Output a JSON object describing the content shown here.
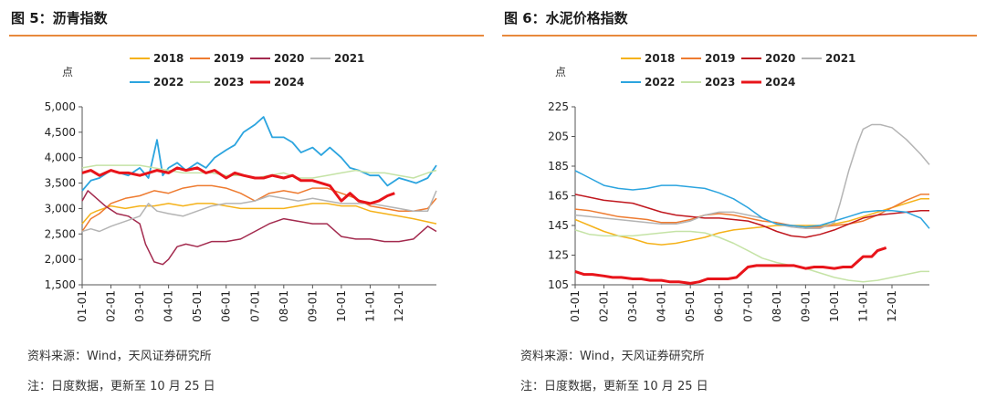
{
  "panels": [
    {
      "title": "图 5：沥青指数",
      "source": "资料来源：Wind，天风证券研究所",
      "note": "注：日度数据，更新至 10 月 25 日"
    },
    {
      "title": "图 6：水泥价格指数",
      "source": "资料来源：Wind，天风证券研究所",
      "note": "注：日度数据，更新至 10 月 25 日"
    }
  ],
  "chart_data": [
    {
      "type": "line",
      "title": "沥青指数",
      "ylabel": "点",
      "ylim": [
        1500,
        5000
      ],
      "yticks": [
        "1,500",
        "2,000",
        "2,500",
        "3,000",
        "3,500",
        "4,000",
        "4,500",
        "5,000"
      ],
      "categories": [
        "01-01",
        "02-01",
        "03-01",
        "04-01",
        "05-01",
        "06-01",
        "07-01",
        "08-01",
        "09-01",
        "10-01",
        "11-01",
        "12-01"
      ],
      "grid": false,
      "legend": "top",
      "series": [
        {
          "name": "2018",
          "color": "#F5B21A",
          "width": 1.5,
          "x": [
            0,
            0.3,
            0.5,
            1,
            1.5,
            2,
            2.5,
            3,
            3.5,
            4,
            4.5,
            5,
            5.5,
            6,
            6.5,
            7,
            7.5,
            8,
            8.5,
            9,
            9.5,
            10,
            10.5,
            11,
            11.5,
            12.3
          ],
          "values": [
            2700,
            2900,
            2950,
            3050,
            3000,
            3050,
            3050,
            3100,
            3050,
            3100,
            3100,
            3050,
            3000,
            3000,
            3000,
            3000,
            3050,
            3100,
            3100,
            3050,
            3050,
            2950,
            2900,
            2850,
            2800,
            2700
          ]
        },
        {
          "name": "2019",
          "color": "#EE7B30",
          "width": 1.5,
          "x": [
            0,
            0.3,
            0.6,
            1,
            1.5,
            2,
            2.5,
            3,
            3.5,
            4,
            4.5,
            5,
            5.5,
            6,
            6.5,
            7,
            7.5,
            8,
            8.5,
            9,
            9.5,
            10,
            10.5,
            11,
            11.5,
            12,
            12.3
          ],
          "values": [
            2550,
            2800,
            2900,
            3100,
            3200,
            3250,
            3350,
            3300,
            3400,
            3450,
            3450,
            3400,
            3300,
            3150,
            3300,
            3350,
            3300,
            3400,
            3400,
            3300,
            3200,
            3050,
            3000,
            2950,
            2950,
            3000,
            3200
          ]
        },
        {
          "name": "2020",
          "color": "#A32A4E",
          "width": 1.5,
          "x": [
            0,
            0.2,
            0.5,
            0.8,
            1.2,
            1.6,
            2,
            2.2,
            2.5,
            2.8,
            3,
            3.3,
            3.6,
            4,
            4.5,
            5,
            5.5,
            6,
            6.5,
            7,
            7.5,
            8,
            8.5,
            9,
            9.5,
            10,
            10.5,
            11,
            11.5,
            12,
            12.3
          ],
          "values": [
            3150,
            3350,
            3200,
            3050,
            2900,
            2850,
            2700,
            2300,
            1950,
            1900,
            2000,
            2250,
            2300,
            2250,
            2350,
            2350,
            2400,
            2550,
            2700,
            2800,
            2750,
            2700,
            2700,
            2450,
            2400,
            2400,
            2350,
            2350,
            2400,
            2650,
            2550
          ]
        },
        {
          "name": "2021",
          "color": "#B4B4B4",
          "width": 1.5,
          "x": [
            0,
            0.3,
            0.6,
            1,
            1.5,
            2,
            2.3,
            2.6,
            3,
            3.5,
            4,
            4.5,
            5,
            5.5,
            6,
            6.5,
            7,
            7.5,
            8,
            8.5,
            9,
            9.5,
            10,
            10.5,
            11,
            11.5,
            12,
            12.3
          ],
          "values": [
            2550,
            2600,
            2550,
            2650,
            2750,
            2850,
            3100,
            2950,
            2900,
            2850,
            2950,
            3050,
            3100,
            3100,
            3150,
            3250,
            3200,
            3150,
            3200,
            3150,
            3100,
            3100,
            3100,
            3050,
            3000,
            2950,
            2950,
            3350
          ]
        },
        {
          "name": "2022",
          "color": "#2BA4DF",
          "width": 1.8,
          "x": [
            0,
            0.3,
            0.6,
            1,
            1.3,
            1.6,
            2,
            2.3,
            2.6,
            2.8,
            3,
            3.3,
            3.6,
            4,
            4.3,
            4.6,
            5,
            5.3,
            5.6,
            6,
            6.3,
            6.6,
            7,
            7.3,
            7.6,
            8,
            8.3,
            8.6,
            9,
            9.3,
            9.6,
            10,
            10.3,
            10.6,
            11,
            11.3,
            11.6,
            12,
            12.3
          ],
          "values": [
            3350,
            3550,
            3600,
            3750,
            3700,
            3650,
            3800,
            3600,
            4350,
            3650,
            3800,
            3900,
            3750,
            3900,
            3800,
            4000,
            4150,
            4250,
            4500,
            4650,
            4800,
            4400,
            4400,
            4300,
            4100,
            4200,
            4050,
            4200,
            4000,
            3800,
            3750,
            3650,
            3650,
            3450,
            3600,
            3550,
            3500,
            3600,
            3850
          ]
        },
        {
          "name": "2023",
          "color": "#C5E3A6",
          "width": 1.5,
          "x": [
            0,
            0.5,
            1,
            1.5,
            2,
            2.5,
            3,
            3.5,
            4,
            4.5,
            5,
            5.5,
            6,
            6.5,
            7,
            7.5,
            8,
            8.5,
            9,
            9.5,
            10,
            10.5,
            11,
            11.5,
            12,
            12.3
          ],
          "values": [
            3800,
            3850,
            3850,
            3850,
            3850,
            3800,
            3750,
            3700,
            3700,
            3700,
            3650,
            3650,
            3600,
            3650,
            3700,
            3600,
            3600,
            3650,
            3700,
            3750,
            3700,
            3700,
            3650,
            3600,
            3700,
            3750
          ]
        },
        {
          "name": "2024",
          "color": "#E8141A",
          "width": 3,
          "x": [
            0,
            0.3,
            0.6,
            1,
            1.3,
            1.6,
            2,
            2.3,
            2.6,
            3,
            3.3,
            3.6,
            4,
            4.3,
            4.6,
            5,
            5.3,
            5.6,
            6,
            6.3,
            6.6,
            7,
            7.3,
            7.6,
            8,
            8.3,
            8.6,
            9,
            9.3,
            9.6,
            10,
            10.3,
            10.6,
            10.85
          ],
          "values": [
            3700,
            3750,
            3650,
            3750,
            3700,
            3700,
            3650,
            3700,
            3750,
            3700,
            3800,
            3750,
            3800,
            3700,
            3750,
            3600,
            3700,
            3650,
            3600,
            3600,
            3650,
            3600,
            3650,
            3550,
            3550,
            3500,
            3450,
            3150,
            3300,
            3150,
            3100,
            3150,
            3250,
            3300
          ]
        }
      ]
    },
    {
      "type": "line",
      "title": "水泥价格指数",
      "ylabel": "点",
      "ylim": [
        105,
        225
      ],
      "yticks": [
        "105",
        "125",
        "145",
        "165",
        "185",
        "205",
        "225"
      ],
      "categories": [
        "01-01",
        "02-01",
        "03-01",
        "04-01",
        "05-01",
        "06-01",
        "07-01",
        "08-01",
        "09-01",
        "10-01",
        "11-01",
        "12-01"
      ],
      "grid": false,
      "legend": "top",
      "series": [
        {
          "name": "2018",
          "color": "#F5B21A",
          "width": 1.5,
          "x": [
            0,
            0.5,
            1,
            1.5,
            2,
            2.5,
            3,
            3.5,
            4,
            4.5,
            5,
            5.5,
            6,
            6.5,
            7,
            7.5,
            8,
            8.5,
            9,
            9.5,
            10,
            10.5,
            11,
            11.5,
            12,
            12.3
          ],
          "values": [
            149,
            145,
            141,
            138,
            136,
            133,
            132,
            133,
            135,
            137,
            140,
            142,
            143,
            144,
            145,
            145,
            145,
            145,
            146,
            148,
            151,
            154,
            157,
            160,
            163,
            163
          ]
        },
        {
          "name": "2019",
          "color": "#EE7B30",
          "width": 1.5,
          "x": [
            0,
            0.5,
            1,
            1.5,
            2,
            2.5,
            3,
            3.5,
            4,
            4.5,
            5,
            5.5,
            6,
            6.5,
            7,
            7.5,
            8,
            8.5,
            9,
            9.5,
            10,
            10.5,
            11,
            11.5,
            12,
            12.3
          ],
          "values": [
            156,
            155,
            153,
            151,
            150,
            149,
            147,
            147,
            149,
            152,
            153,
            152,
            150,
            148,
            147,
            145,
            144,
            144,
            145,
            146,
            148,
            152,
            157,
            162,
            166,
            166
          ]
        },
        {
          "name": "2020",
          "color": "#C0181F",
          "width": 1.5,
          "x": [
            0,
            0.5,
            1,
            1.5,
            2,
            2.5,
            3,
            3.5,
            4,
            4.5,
            5,
            5.5,
            6,
            6.5,
            7,
            7.5,
            8,
            8.5,
            9,
            9.5,
            10,
            10.5,
            11,
            11.5,
            12,
            12.3
          ],
          "values": [
            166,
            164,
            162,
            161,
            160,
            157,
            154,
            152,
            151,
            150,
            150,
            149,
            148,
            145,
            141,
            138,
            137,
            139,
            142,
            146,
            150,
            152,
            153,
            154,
            155,
            155
          ]
        },
        {
          "name": "2021",
          "color": "#B4B4B4",
          "width": 1.5,
          "x": [
            0,
            0.5,
            1,
            1.5,
            2,
            2.5,
            3,
            3.5,
            4,
            4.5,
            5,
            5.5,
            6,
            6.5,
            7,
            7.5,
            8,
            8.5,
            9,
            9.2,
            9.5,
            9.8,
            10,
            10.3,
            10.6,
            11,
            11.5,
            12,
            12.3
          ],
          "values": [
            152,
            151,
            150,
            149,
            148,
            147,
            146,
            146,
            148,
            152,
            154,
            154,
            152,
            150,
            146,
            144,
            143,
            143,
            147,
            160,
            182,
            200,
            210,
            213,
            213,
            211,
            203,
            193,
            186
          ]
        },
        {
          "name": "2022",
          "color": "#2BA4DF",
          "width": 1.5,
          "x": [
            0,
            0.5,
            1,
            1.5,
            2,
            2.5,
            3,
            3.5,
            4,
            4.5,
            5,
            5.5,
            6,
            6.5,
            7,
            7.5,
            8,
            8.5,
            9,
            9.5,
            10,
            10.5,
            11,
            11.5,
            12,
            12.3
          ],
          "values": [
            182,
            177,
            172,
            170,
            169,
            170,
            172,
            172,
            171,
            170,
            167,
            163,
            157,
            150,
            146,
            145,
            144,
            145,
            148,
            151,
            154,
            155,
            155,
            154,
            150,
            143
          ]
        },
        {
          "name": "2023",
          "color": "#C5E3A6",
          "width": 1.5,
          "x": [
            0,
            0.5,
            1,
            1.5,
            2,
            2.5,
            3,
            3.5,
            4,
            4.5,
            5,
            5.5,
            6,
            6.5,
            7,
            7.5,
            8,
            8.5,
            9,
            9.5,
            10,
            10.5,
            11,
            11.5,
            12,
            12.3
          ],
          "values": [
            142,
            139,
            138,
            138,
            138,
            139,
            140,
            141,
            141,
            140,
            137,
            133,
            128,
            123,
            120,
            118,
            116,
            113,
            110,
            108,
            107,
            108,
            110,
            112,
            114,
            114
          ]
        },
        {
          "name": "2024",
          "color": "#E8141A",
          "width": 3,
          "x": [
            0,
            0.3,
            0.6,
            1,
            1.3,
            1.6,
            2,
            2.3,
            2.6,
            3,
            3.3,
            3.6,
            4,
            4.3,
            4.6,
            5,
            5.3,
            5.6,
            6,
            6.3,
            6.6,
            7,
            7.3,
            7.6,
            8,
            8.3,
            8.6,
            9,
            9.3,
            9.6,
            10,
            10.3,
            10.5,
            10.8
          ],
          "values": [
            114,
            112,
            112,
            111,
            110,
            110,
            109,
            109,
            108,
            108,
            107,
            107,
            106,
            107,
            109,
            109,
            109,
            110,
            117,
            118,
            118,
            118,
            118,
            118,
            116,
            117,
            117,
            116,
            117,
            117,
            124,
            124,
            128,
            130
          ]
        }
      ]
    }
  ]
}
